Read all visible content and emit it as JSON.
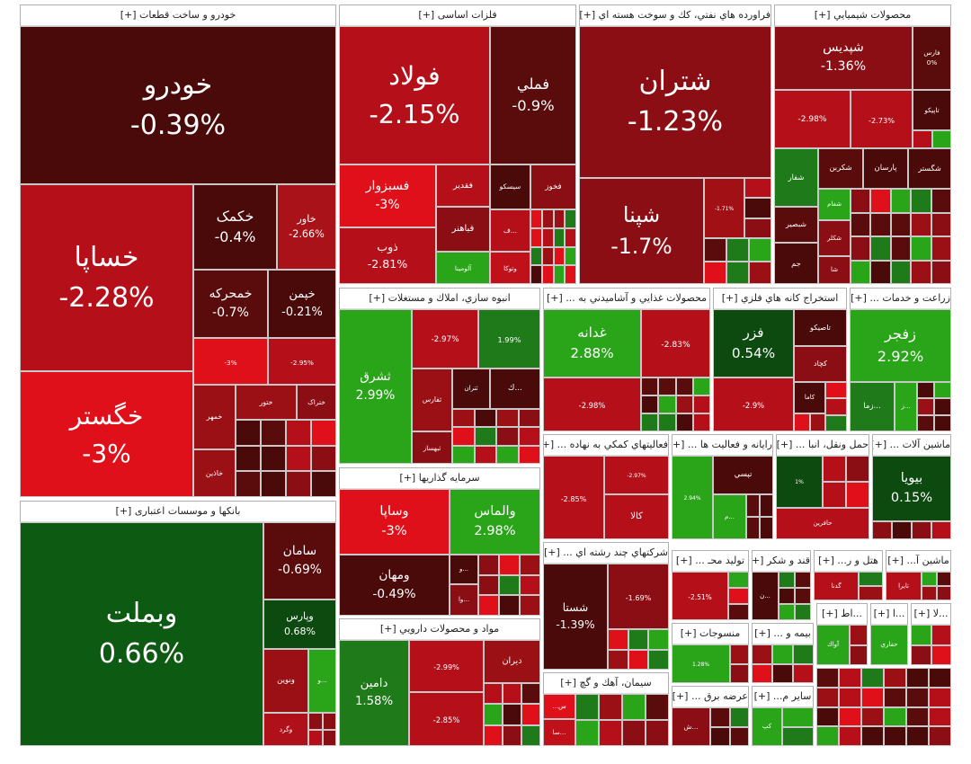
{
  "sectors": [
    {
      "title": "خودرو و ساخت قطعات [+]",
      "tiles": [
        {
          "name": "خودرو",
          "change": "-0.39%",
          "color": "#4a0a0a"
        },
        {
          "name": "خساپا",
          "change": "-2.28%",
          "color": "#b5101a"
        },
        {
          "name": "خگستر",
          "change": "-3%",
          "color": "#e0101a"
        },
        {
          "name": "خکمک",
          "change": "-0.4%",
          "color": "#4a0a0a"
        },
        {
          "name": "خاور",
          "change": "-2.66%",
          "color": "#a81218"
        },
        {
          "name": "خمحرکه",
          "change": "-0.7%",
          "color": "#5a0c0c"
        },
        {
          "name": "خپمن",
          "change": "-0.21%",
          "color": "#4a0a0a"
        },
        {
          "change": "-3%",
          "color": "#e0101a"
        },
        {
          "change": "-2.95%",
          "color": "#b5101a"
        },
        {
          "name": "خمهر",
          "color": "#9a1015"
        },
        {
          "name": "ختور",
          "color": "#9a1015"
        },
        {
          "name": "ختراک",
          "color": "#8b0e14"
        },
        {
          "name": "خاذین",
          "color": "#9a1015"
        }
      ]
    },
    {
      "title": "بانکها و موسسات اعتباری [+]",
      "tiles": [
        {
          "name": "وبملت",
          "change": "0.66%",
          "color": "#0d5a12"
        },
        {
          "name": "سامان",
          "change": "-0.69%",
          "color": "#5a0c0c"
        },
        {
          "name": "وپارس",
          "change": "0.68%",
          "color": "#0d4a10"
        },
        {
          "name": "ونوین",
          "color": "#9a1015"
        },
        {
          "name": "و...",
          "color": "#2aa51a"
        },
        {
          "name": "وگرد",
          "color": "#b0101a"
        }
      ]
    },
    {
      "title": "فلزات اساسی [+]",
      "tiles": [
        {
          "name": "فولاد",
          "change": "-2.15%",
          "color": "#b5101a"
        },
        {
          "name": "فملي",
          "change": "-0.9%",
          "color": "#5a0c0c"
        },
        {
          "name": "فسبزوار",
          "change": "-3%",
          "color": "#e0101a"
        },
        {
          "name": "ذوب",
          "change": "-2.81%",
          "color": "#b5101a"
        },
        {
          "name": "فقدير",
          "color": "#b5101a"
        },
        {
          "name": "سيسكو",
          "color": "#4a0a0a"
        },
        {
          "name": "فخوز",
          "color": "#8b0e14"
        },
        {
          "name": "فباهنر",
          "color": "#8b0e14"
        },
        {
          "name": "ف...",
          "color": "#b5101a"
        },
        {
          "name": "آلومينا",
          "color": "#2aa51a"
        },
        {
          "name": "وتوكا",
          "color": "#c0101a"
        }
      ]
    },
    {
      "title": "فراورده هاي نفتي، كك و سوخت هسته اي [+]",
      "tiles": [
        {
          "name": "شتران",
          "change": "-1.23%",
          "color": "#8b0e14"
        },
        {
          "name": "شپنا",
          "change": "-1.7%",
          "color": "#8b0e14"
        },
        {
          "change": "-1.71%",
          "color": "#a01015"
        }
      ]
    },
    {
      "title": "محصولات شيميايي [+]",
      "tiles": [
        {
          "name": "شپديس",
          "change": "-1.36%",
          "color": "#8b0e14"
        },
        {
          "name": "فارس",
          "change": "0%",
          "color": "#5a0c0c"
        },
        {
          "change": "-2.98%",
          "color": "#b5101a"
        },
        {
          "change": "-2.73%",
          "color": "#b5101a"
        },
        {
          "name": "تاپيكو",
          "color": "#4a0a0a"
        },
        {
          "name": "شگستر",
          "color": "#4a0a0a"
        },
        {
          "name": "پارسان",
          "color": "#4a0a0a"
        },
        {
          "name": "شكربن",
          "color": "#5a0c0c"
        },
        {
          "name": "شفار",
          "color": "#1f7a1a"
        },
        {
          "name": "شفام",
          "color": "#2aa51a"
        },
        {
          "name": "شبصير",
          "color": "#5a0c0c"
        },
        {
          "name": "شكلر",
          "color": "#8b0e14"
        },
        {
          "name": "جم",
          "color": "#4a0a0a"
        },
        {
          "name": "شا",
          "color": "#8b0e14"
        }
      ]
    },
    {
      "title": "انبوه سازي، املاك و مستغلات [+]",
      "tiles": [
        {
          "name": "ثشرق",
          "change": "2.99%",
          "color": "#2aa51a"
        },
        {
          "change": "-2.97%",
          "color": "#b5101a"
        },
        {
          "change": "1.99%",
          "color": "#1f7a1a"
        },
        {
          "name": "ثفارس",
          "color": "#9a1015"
        },
        {
          "name": "ثتران",
          "color": "#4a0a0a"
        },
        {
          "name": "ك...",
          "color": "#4a0a0a"
        },
        {
          "name": "ثبهساز",
          "color": "#8b0e14"
        }
      ]
    },
    {
      "title": "محصولات غذايي و آشاميدني به ... [+]",
      "tiles": [
        {
          "name": "غدانه",
          "change": "2.88%",
          "color": "#2aa51a"
        },
        {
          "change": "-2.83%",
          "color": "#b5101a"
        },
        {
          "change": "-2.98%",
          "color": "#b5101a"
        }
      ]
    },
    {
      "title": "استخراج كانه هاي فلزي [+]",
      "tiles": [
        {
          "name": "فزر",
          "change": "0.54%",
          "color": "#0d4a10"
        },
        {
          "name": "تاصيكو",
          "color": "#4a0a0a"
        },
        {
          "name": "كچاد",
          "color": "#8b0e14"
        },
        {
          "change": "-2.9%",
          "color": "#b5101a"
        },
        {
          "name": "كاما",
          "color": "#4a0a0a"
        }
      ]
    },
    {
      "title": "زراعت و خدمات ... [+]",
      "tiles": [
        {
          "name": "زفجر",
          "change": "2.92%",
          "color": "#2aa51a"
        },
        {
          "name": "زما...",
          "color": "#1f7a1a"
        },
        {
          "name": "ز...",
          "color": "#2aa51a"
        }
      ]
    },
    {
      "title": "فعاليتهاي كمكي به نهاده ... [+]",
      "tiles": [
        {
          "change": "-2.85%",
          "color": "#b5101a"
        },
        {
          "change": "-2.97%",
          "color": "#b5101a"
        },
        {
          "name": "كالا",
          "color": "#b5101a"
        }
      ]
    },
    {
      "title": "رايانه و فعاليت ها ... [+]",
      "tiles": [
        {
          "change": "2.94%",
          "color": "#2aa51a"
        },
        {
          "name": "تپسي",
          "color": "#4a0a0a"
        },
        {
          "name": "م...",
          "color": "#2aa51a"
        }
      ]
    },
    {
      "title": "حمل ونقل، انبا ... [+]",
      "tiles": [
        {
          "change": "1%",
          "color": "#0d4a10"
        },
        {
          "name": "حافرين",
          "color": "#b5101a"
        }
      ]
    },
    {
      "title": "ماشين آلات ... [+]",
      "tiles": [
        {
          "name": "بيويا",
          "change": "0.15%",
          "color": "#0d4a10"
        }
      ]
    },
    {
      "title": "سرمايه گذاريها [+]",
      "tiles": [
        {
          "name": "وساپا",
          "change": "-3%",
          "color": "#e0101a"
        },
        {
          "name": "والماس",
          "change": "2.98%",
          "color": "#2aa51a"
        },
        {
          "name": "ومهان",
          "change": "-0.49%",
          "color": "#4a0a0a"
        },
        {
          "name": "و...",
          "color": "#4a0a0a"
        },
        {
          "name": "وا...",
          "color": "#8b0e14"
        }
      ]
    },
    {
      "title": "شركتهاي چند رشته اي ... [+]",
      "tiles": [
        {
          "name": "شستا",
          "change": "-1.39%",
          "color": "#4a0a0a"
        },
        {
          "change": "-1.69%",
          "color": "#8b0e14"
        }
      ]
    },
    {
      "title": "مواد و محصولات دارويي [+]",
      "tiles": [
        {
          "name": "دامين",
          "change": "1.58%",
          "color": "#1f7a1a"
        },
        {
          "change": "-2.99%",
          "color": "#b5101a"
        },
        {
          "name": "ديران",
          "color": "#9a1015"
        },
        {
          "change": "-2.85%",
          "color": "#b5101a"
        }
      ]
    },
    {
      "title": "سيمان، آهك و گچ [+]",
      "tiles": [
        {
          "name": "...س",
          "color": "#e0101a"
        },
        {
          "name": "سا...",
          "color": "#c0101a"
        }
      ]
    },
    {
      "title": "توليد محـ ... [+]",
      "tiles": [
        {
          "change": "-2.51%",
          "color": "#b5101a"
        }
      ]
    },
    {
      "title": "قند و شكر [+]",
      "tiles": [
        {
          "name": "ن...",
          "color": "#4a0a0a"
        }
      ]
    },
    {
      "title": "هتل و ر... [+]",
      "tiles": [
        {
          "name": "گدنا",
          "color": "#b5101a"
        }
      ]
    },
    {
      "title": "ماشين آ... [+]",
      "tiles": [
        {
          "name": "تايرا",
          "color": "#b5101a"
        }
      ]
    },
    {
      "title": "منسوجات [+]",
      "tiles": [
        {
          "change": "1.28%",
          "color": "#2aa51a"
        }
      ]
    },
    {
      "title": "بيمه و ... [+]",
      "tiles": []
    },
    {
      "title": "...اط [+]",
      "tiles": [
        {
          "name": "آواك",
          "color": "#2aa51a"
        }
      ]
    },
    {
      "title": "...ا [+]",
      "tiles": [
        {
          "name": "حفاري",
          "color": "#2aa51a"
        }
      ]
    },
    {
      "title": "...لا [+]",
      "tiles": []
    },
    {
      "title": "عرضه برق ... [+]",
      "tiles": [
        {
          "name": "ش...",
          "color": "#8b0e14"
        }
      ]
    },
    {
      "title": "ساير م... [+]",
      "tiles": [
        {
          "name": "كپ",
          "color": "#2aa51a"
        }
      ]
    }
  ]
}
